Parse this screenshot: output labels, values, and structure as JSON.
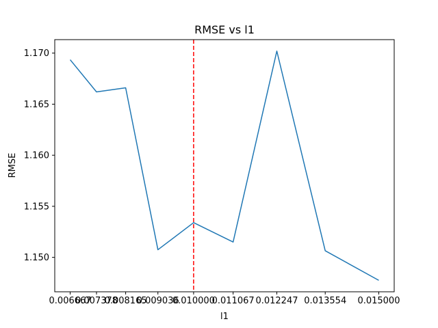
{
  "chart_data": {
    "type": "line",
    "title": "RMSE vs l1",
    "xlabel": "l1",
    "ylabel": "RMSE",
    "x": [
      0.006667,
      0.007378,
      0.008165,
      0.009036,
      0.01,
      0.011067,
      0.012247,
      0.013554,
      0.015
    ],
    "x_tick_labels": [
      "0.006667",
      "0.007378",
      "0.008165",
      "0.009036",
      "0.010000",
      "0.011067",
      "0.012247",
      "0.013554",
      "0.015000"
    ],
    "series": [
      {
        "values": [
          1.16935,
          1.1662,
          1.1666,
          1.15075,
          1.1534,
          1.1515,
          1.1702,
          1.15065,
          1.14775
        ],
        "color": "#1f77b4"
      }
    ],
    "y_ticks": [
      1.15,
      1.155,
      1.16,
      1.165,
      1.17
    ],
    "y_tick_labels": [
      "1.150",
      "1.155",
      "1.160",
      "1.165",
      "1.170"
    ],
    "ylim": [
      1.14663,
      1.17132
    ],
    "vline": {
      "x": 0.01,
      "color": "#ff0000",
      "style": "dashed"
    },
    "grid": false,
    "legend": "none"
  }
}
